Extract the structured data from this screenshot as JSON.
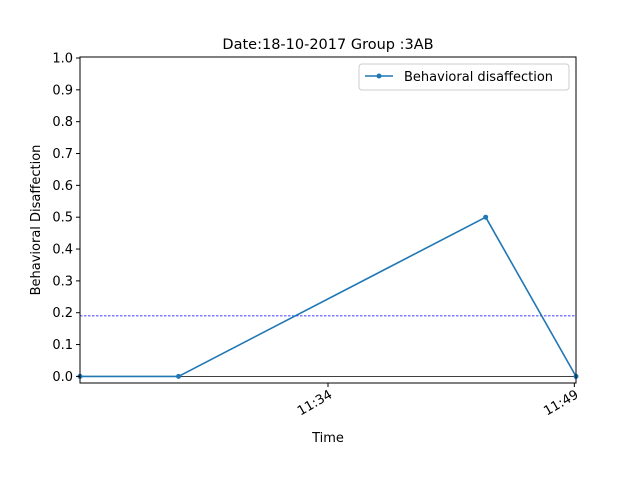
{
  "chart_data": {
    "type": "line",
    "title": "Date:18-10-2017 Group :3AB",
    "xlabel": "Time",
    "ylabel": "Behavioral Disaffection",
    "ylim": [
      0,
      1.0
    ],
    "yticks": [
      "0.0",
      "0.1",
      "0.2",
      "0.3",
      "0.4",
      "0.5",
      "0.6",
      "0.7",
      "0.8",
      "0.9",
      "1.0"
    ],
    "xticks": [
      {
        "label": "11:34",
        "minutes": 694
      },
      {
        "label": "11:49",
        "minutes": 709
      }
    ],
    "xlim_minutes": [
      678.9,
      709.1
    ],
    "series": [
      {
        "name": "Behavioral disaffection",
        "color": "#1f77b4",
        "points": [
          {
            "time": "11:18:54",
            "minutes": 678.9,
            "value": 0.0
          },
          {
            "time": "11:24:54",
            "minutes": 684.9,
            "value": 0.0
          },
          {
            "time": "11:43:36",
            "minutes": 703.6,
            "value": 0.5
          },
          {
            "time": "11:49:06",
            "minutes": 709.1,
            "value": 0.0
          }
        ]
      }
    ],
    "reference_line": {
      "value": 0.19,
      "color": "#0000ff",
      "style": "dashed"
    },
    "zero_line": {
      "value": 0.0,
      "color": "#000000"
    },
    "legend": {
      "position": "top-right"
    },
    "grid": false
  }
}
